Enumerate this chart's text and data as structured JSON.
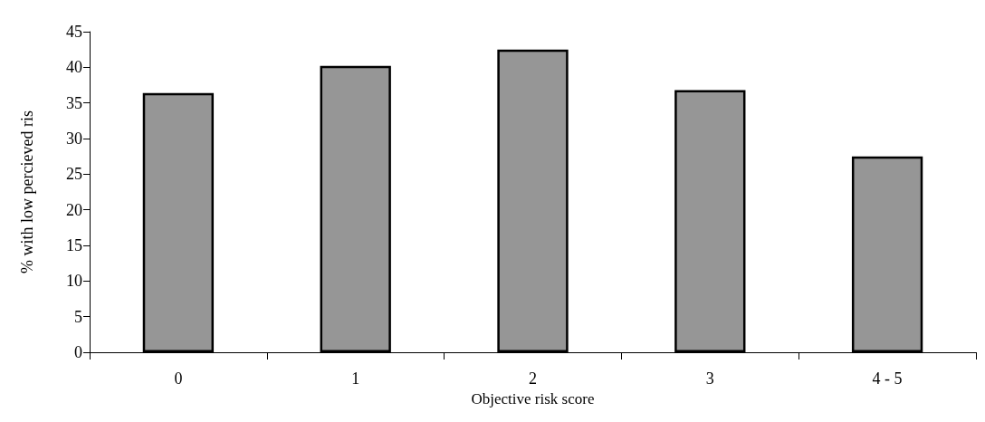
{
  "chart_data": {
    "type": "bar",
    "xlabel": "Objective risk score",
    "ylabel": "% with low percieved ris",
    "categories": [
      "0",
      "1",
      "2",
      "3",
      "4 - 5"
    ],
    "values": [
      36.4,
      40.2,
      42.5,
      36.8,
      27.5
    ],
    "color": "#969696",
    "ylim": [
      0,
      45
    ],
    "yticks": [
      0,
      5,
      10,
      15,
      20,
      25,
      30,
      35,
      40,
      45
    ],
    "grid": false
  }
}
